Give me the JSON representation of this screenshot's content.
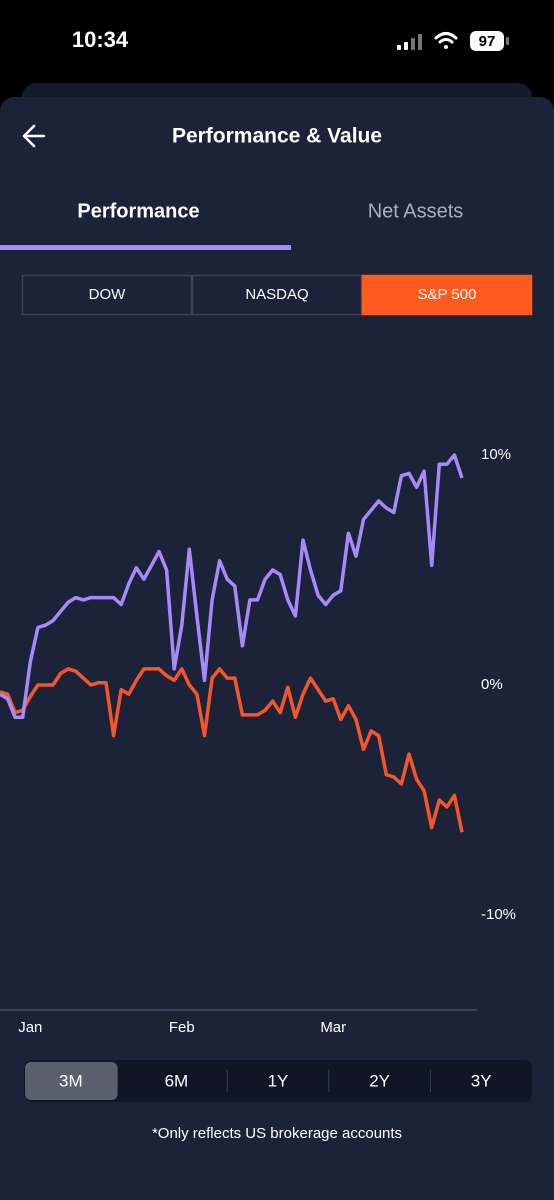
{
  "status_bar": {
    "time": "10:34",
    "battery": "97"
  },
  "header": {
    "title": "Performance & Value"
  },
  "tabs": {
    "items": [
      "Performance",
      "Net Assets"
    ],
    "active": 0
  },
  "index_selector": {
    "options": [
      "DOW",
      "NASDAQ",
      "S&P 500"
    ],
    "selected": 2
  },
  "chart_data": {
    "type": "line",
    "categories": [
      null,
      null,
      null,
      null,
      "Jan",
      null,
      null,
      null,
      null,
      null,
      null,
      null,
      null,
      null,
      null,
      null,
      null,
      null,
      null,
      null,
      null,
      null,
      null,
      null,
      "Feb",
      null,
      null,
      null,
      null,
      null,
      null,
      null,
      null,
      null,
      null,
      null,
      null,
      null,
      null,
      null,
      null,
      null,
      null,
      null,
      "Mar",
      null,
      null,
      null,
      null,
      null,
      null,
      null,
      null,
      null,
      null,
      null,
      null,
      null,
      null,
      null,
      null,
      null
    ],
    "series": [
      {
        "color": "#a68afa",
        "values": [
          -0.4,
          -0.6,
          -1.4,
          -1.4,
          1.0,
          2.5,
          2.6,
          2.8,
          3.2,
          3.6,
          3.8,
          3.7,
          3.8,
          3.8,
          3.8,
          3.8,
          3.5,
          4.4,
          5.1,
          4.6,
          5.2,
          5.8,
          5.0,
          0.7,
          2.6,
          5.9,
          3.0,
          0.2,
          3.7,
          5.4,
          4.6,
          4.3,
          1.7,
          3.7,
          3.7,
          4.6,
          5.0,
          4.8,
          3.7,
          3.0,
          6.3,
          5.0,
          3.9,
          3.5,
          3.9,
          4.1,
          6.6,
          5.6,
          7.2,
          7.6,
          8.0,
          7.7,
          7.5,
          9.1,
          9.2,
          8.6,
          9.3,
          5.2,
          9.6,
          9.6,
          10.0,
          9.0
        ]
      },
      {
        "color": "#f4562c",
        "values": [
          -0.3,
          -0.4,
          -1.2,
          -1.1,
          -0.5,
          0,
          0,
          0,
          0.5,
          0.7,
          0.6,
          0.3,
          0,
          0.1,
          0.1,
          -2.2,
          -0.2,
          -0.4,
          0.2,
          0.7,
          0.7,
          0.7,
          0.4,
          0.2,
          0.7,
          0,
          -0.4,
          -2.2,
          0.3,
          0.7,
          0.3,
          0.3,
          -1.3,
          -1.3,
          -1.3,
          -1.1,
          -0.7,
          -1.2,
          -0.1,
          -1.4,
          -0.4,
          0.3,
          -0.2,
          -0.7,
          -0.6,
          -1.5,
          -0.9,
          -1.5,
          -2.8,
          -2.0,
          -2.2,
          -3.9,
          -4.0,
          -4.3,
          -3.0,
          -4.1,
          -4.6,
          -6.2,
          -5.0,
          -5.3,
          -4.8,
          -6.4
        ]
      }
    ],
    "ylim": [
      -14,
      15
    ],
    "yticks": [
      {
        "value": 10,
        "label": "10%"
      },
      {
        "value": 0,
        "label": "0%"
      },
      {
        "value": -10,
        "label": "-10%"
      }
    ]
  },
  "range_selector": {
    "options": [
      "3M",
      "6M",
      "1Y",
      "2Y",
      "3Y"
    ],
    "selected": 0
  },
  "footnote": "*Only reflects US brokerage accounts"
}
